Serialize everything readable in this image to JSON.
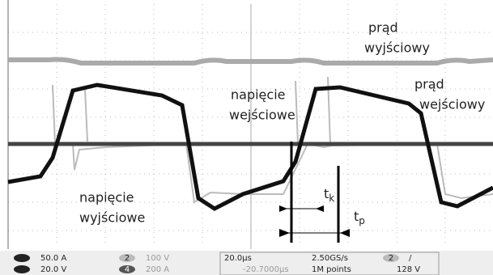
{
  "labels": {
    "output_current": [
      "prąd",
      "wyjściowy"
    ],
    "input_current": [
      "prąd",
      "wejściowy"
    ],
    "input_voltage": [
      "napięcie",
      "wejściowe"
    ],
    "output_voltage": [
      "napięcie",
      "wyjściowe"
    ],
    "tk": {
      "main": "t",
      "sub": "k"
    },
    "tp": {
      "main": "t",
      "sub": "p"
    }
  },
  "status": {
    "ch1": "50.0 A",
    "ch3": "20.0 V",
    "ch2_num": "2",
    "ch2": "100 V",
    "ch4_num": "4",
    "ch4": "200 A",
    "timebase": "20.0µs",
    "position": "-20.7000µs",
    "rate": "2.50GS/s",
    "points": "1M points",
    "trig_ch": "2",
    "trig_slope": "/",
    "trig_level": "128 V"
  }
}
